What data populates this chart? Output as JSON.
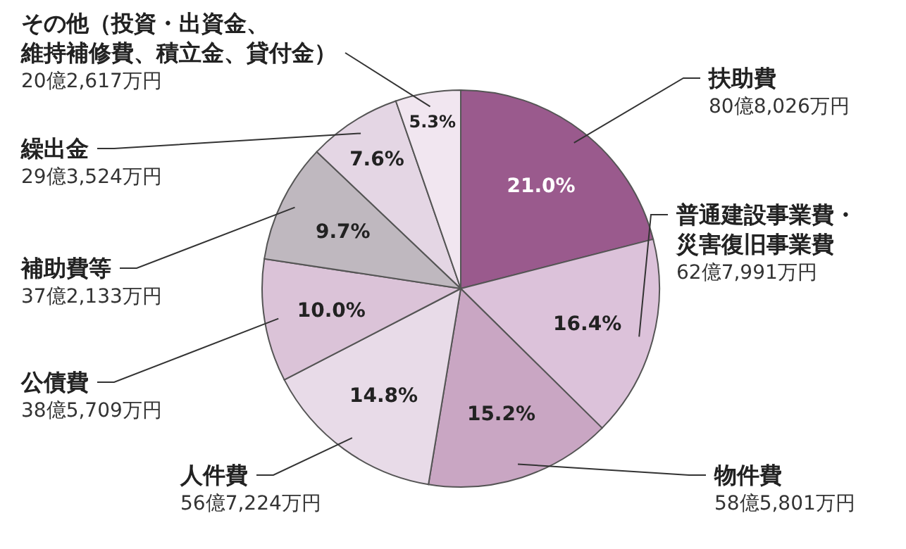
{
  "chart_data": {
    "type": "pie",
    "categories": [
      "扶助費",
      "普通建設事業費・災害復旧事業費",
      "物件費",
      "人件費",
      "公債費",
      "補助費等",
      "繰出金",
      "その他（投資・出資金、維持補修費、積立金、貸付金）"
    ],
    "values": [
      21.0,
      16.4,
      15.2,
      14.8,
      10.0,
      9.7,
      7.6,
      5.3
    ],
    "value_labels": [
      "21.0%",
      "16.4%",
      "15.2%",
      "14.8%",
      "10.0%",
      "9.7%",
      "7.6%",
      "5.3%"
    ],
    "colors": [
      "#9a5a8d",
      "#dcc2da",
      "#c9a6c3",
      "#e8dbe8",
      "#dbc3d8",
      "#bfb8bf",
      "#e4d6e4",
      "#f1e6f0"
    ],
    "annotations": [
      "80億8,026万円",
      "62億7,991万円",
      "58億5,801万円",
      "56億7,224万円",
      "38億5,709万円",
      "37億2,133万円",
      "29億3,524万円",
      "20億2,617万円"
    ],
    "tick_labels": false
  }
}
